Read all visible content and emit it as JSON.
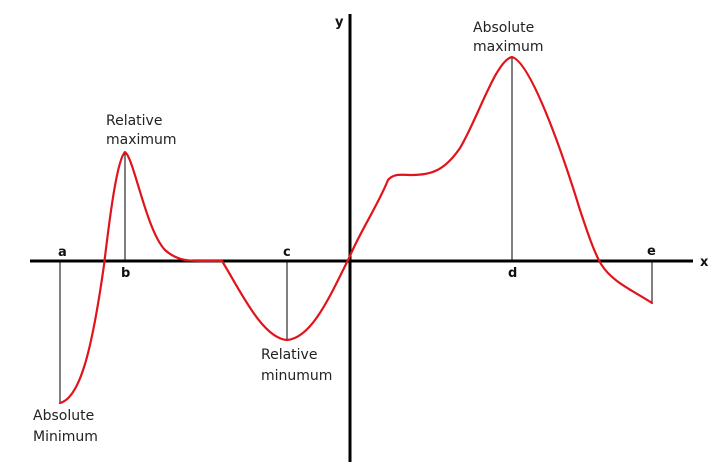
{
  "axes": {
    "x_label": "x",
    "y_label": "y"
  },
  "points": {
    "a": "a",
    "b": "b",
    "c": "c",
    "d": "d",
    "e": "e"
  },
  "annotations": {
    "relative_maximum": [
      "Relative",
      "maximum"
    ],
    "absolute_maximum": [
      "Absolute",
      "maximum"
    ],
    "relative_minimum": [
      "Relative",
      "minumum"
    ],
    "absolute_minimum": [
      "Absolute",
      "Minimum"
    ]
  },
  "colors": {
    "curve": "#e0141b",
    "axes": "#000000"
  }
}
